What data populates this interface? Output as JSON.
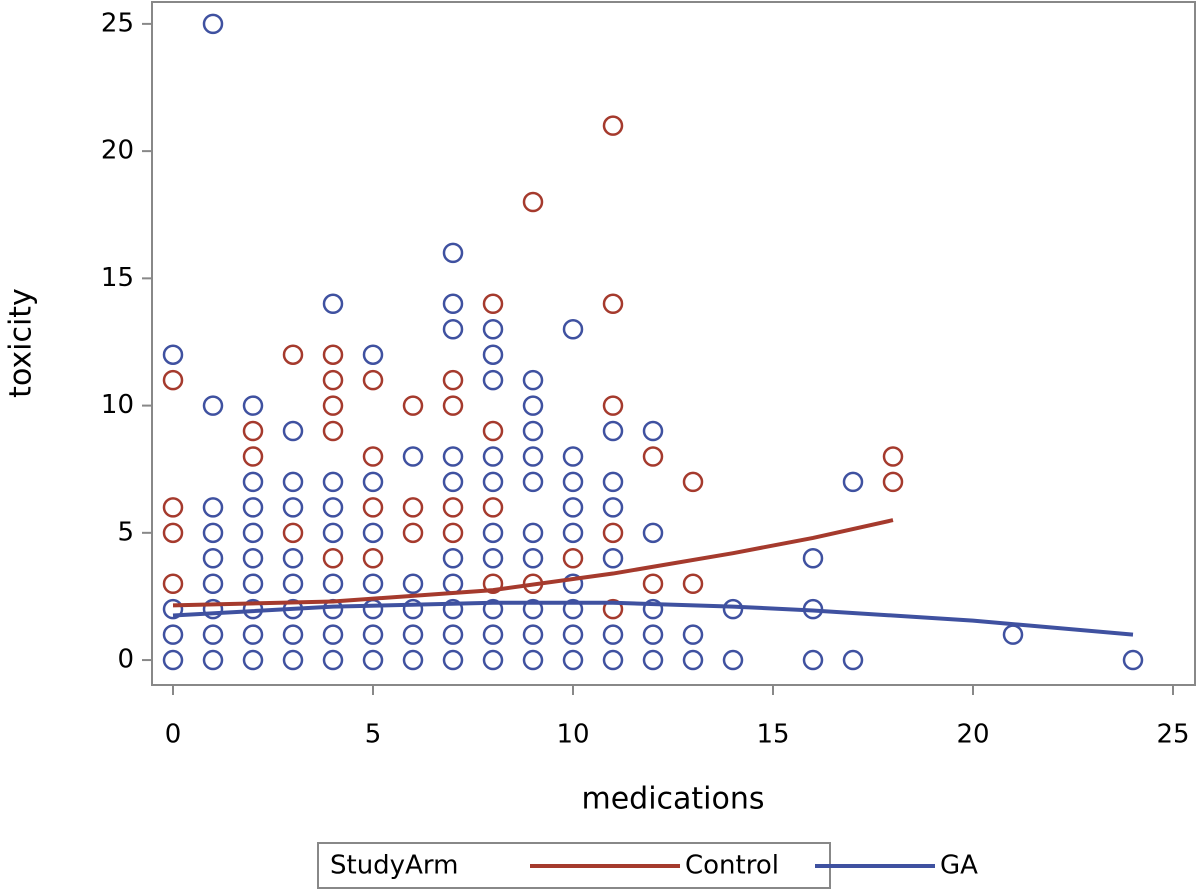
{
  "chart_data": {
    "type": "scatter",
    "x_label": "medications",
    "y_label": "toxicity",
    "xlim": [
      -0.525,
      25.55
    ],
    "ylim": [
      -0.98,
      25.86
    ],
    "xticks": [
      0,
      5,
      10,
      15,
      20,
      25
    ],
    "yticks": [
      0,
      5,
      10,
      15,
      20,
      25
    ],
    "legend_title": "StudyArm",
    "legend_position": "bottom",
    "series": [
      {
        "name": "Control",
        "color": "#a53a2d",
        "x": [
          0,
          0,
          0,
          0,
          2,
          2,
          3,
          3,
          4,
          4,
          4,
          4,
          4,
          5,
          5,
          5,
          5,
          6,
          6,
          6,
          7,
          7,
          7,
          7,
          8,
          8,
          8,
          8,
          9,
          9,
          10,
          11,
          11,
          11,
          11,
          11,
          12,
          12,
          13,
          13,
          18,
          18
        ],
        "values": [
          11,
          6,
          5,
          3,
          9,
          8,
          12,
          5,
          12,
          11,
          10,
          9,
          4,
          11,
          8,
          6,
          4,
          10,
          6,
          5,
          11,
          10,
          6,
          5,
          14,
          9,
          6,
          3,
          18,
          3,
          4,
          21,
          14,
          10,
          5,
          2,
          8,
          3,
          7,
          3,
          8,
          7
        ],
        "fit": {
          "x": [
            0,
            4,
            8,
            11,
            14,
            16,
            18
          ],
          "values": [
            2.15,
            2.3,
            2.75,
            3.4,
            4.2,
            4.8,
            5.5
          ]
        }
      },
      {
        "name": "GA",
        "color": "#3f51a0",
        "x": [
          0,
          0,
          0,
          0,
          1,
          1,
          1,
          1,
          1,
          1,
          1,
          1,
          1,
          2,
          2,
          2,
          2,
          2,
          2,
          2,
          2,
          2,
          3,
          3,
          3,
          3,
          3,
          3,
          3,
          3,
          4,
          4,
          4,
          4,
          4,
          4,
          4,
          4,
          5,
          5,
          5,
          5,
          5,
          5,
          5,
          6,
          6,
          6,
          6,
          6,
          7,
          7,
          7,
          7,
          7,
          7,
          7,
          7,
          7,
          7,
          8,
          8,
          8,
          8,
          8,
          8,
          8,
          8,
          8,
          8,
          9,
          9,
          9,
          9,
          9,
          9,
          9,
          9,
          9,
          9,
          10,
          10,
          10,
          10,
          10,
          10,
          10,
          10,
          10,
          11,
          11,
          11,
          11,
          11,
          11,
          12,
          12,
          12,
          12,
          12,
          13,
          13,
          14,
          14,
          16,
          16,
          16,
          17,
          17,
          21,
          24
        ],
        "values": [
          12,
          2,
          1,
          0,
          25,
          10,
          6,
          5,
          4,
          3,
          2,
          1,
          0,
          10,
          7,
          6,
          5,
          4,
          3,
          2,
          1,
          0,
          9,
          7,
          6,
          4,
          3,
          2,
          1,
          0,
          14,
          7,
          6,
          5,
          3,
          2,
          1,
          0,
          12,
          7,
          5,
          3,
          2,
          1,
          0,
          8,
          3,
          2,
          1,
          0,
          16,
          14,
          13,
          8,
          7,
          4,
          3,
          2,
          1,
          0,
          13,
          12,
          11,
          8,
          7,
          5,
          4,
          2,
          1,
          0,
          11,
          10,
          9,
          8,
          7,
          5,
          4,
          2,
          1,
          0,
          13,
          8,
          7,
          6,
          5,
          3,
          2,
          1,
          0,
          9,
          7,
          6,
          4,
          1,
          0,
          9,
          5,
          2,
          1,
          0,
          1,
          0,
          2,
          0,
          4,
          2,
          0,
          7,
          0,
          1,
          0
        ],
        "fit": {
          "x": [
            0,
            4,
            8,
            11,
            14,
            16,
            20,
            24
          ],
          "values": [
            1.75,
            2.1,
            2.25,
            2.25,
            2.1,
            1.95,
            1.55,
            1.0
          ]
        }
      }
    ]
  }
}
